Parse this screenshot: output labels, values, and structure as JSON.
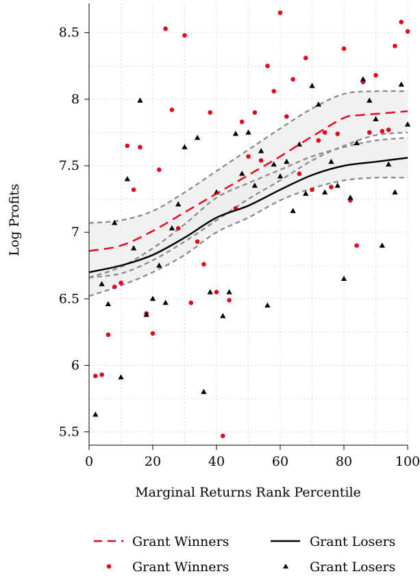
{
  "chart_data": {
    "type": "scatter",
    "xlabel": "Marginal Returns Rank Percentile",
    "ylabel": "Log Profits",
    "xlim": [
      0,
      100
    ],
    "ylim": [
      5.4,
      8.72
    ],
    "x_ticks": [
      0,
      20,
      40,
      60,
      80,
      100
    ],
    "x_tick_labels": [
      "0",
      "20",
      "40",
      "60",
      "80",
      "100"
    ],
    "y_ticks": [
      5.5,
      6,
      6.5,
      7,
      7.5,
      8,
      8.5
    ],
    "y_tick_labels": [
      "5.5",
      "6",
      "6.5",
      "7",
      "7.5",
      "8",
      "8.5"
    ],
    "grid": true,
    "legend_position": "bottom",
    "legend": [
      {
        "label": "Grant Winners",
        "marker": "dashed-line",
        "color": "#e8001c"
      },
      {
        "label": "Grant Losers",
        "marker": "solid-line",
        "color": "#000000"
      },
      {
        "label": "Grant Winners",
        "marker": "dot",
        "color": "#e8001c"
      },
      {
        "label": "Grant Losers",
        "marker": "triangle",
        "color": "#000000"
      }
    ],
    "colors": {
      "winners": "#e8001c",
      "losers": "#000000",
      "ci_band": "#ececec",
      "ci_line": "#8c8c8c"
    },
    "series": [
      {
        "name": "Grant Winners",
        "kind": "points",
        "x": [
          2,
          4,
          6,
          8,
          10,
          12,
          14,
          16,
          18,
          20,
          22,
          24,
          26,
          28,
          30,
          32,
          34,
          36,
          38,
          40,
          42,
          44,
          46,
          48,
          50,
          52,
          54,
          56,
          58,
          60,
          62,
          64,
          66,
          68,
          70,
          72,
          74,
          76,
          78,
          80,
          82,
          84,
          86,
          88,
          90,
          92,
          94,
          96,
          98,
          100
        ],
        "y": [
          5.92,
          5.93,
          6.23,
          6.59,
          6.62,
          7.65,
          7.32,
          7.64,
          6.39,
          6.24,
          7.47,
          8.53,
          7.92,
          7.03,
          8.48,
          6.47,
          6.93,
          6.76,
          7.9,
          6.55,
          5.47,
          6.49,
          7.18,
          7.83,
          7.57,
          7.9,
          7.54,
          8.25,
          8.06,
          8.65,
          7.87,
          8.15,
          7.44,
          8.31,
          7.32,
          7.69,
          7.75,
          7.34,
          7.74,
          8.38,
          7.24,
          6.9,
          8.13,
          7.75,
          8.18,
          7.76,
          7.77,
          8.4,
          8.58,
          8.51
        ]
      },
      {
        "name": "Grant Losers",
        "kind": "points",
        "x": [
          2,
          4,
          6,
          8,
          10,
          12,
          14,
          16,
          18,
          20,
          22,
          24,
          26,
          28,
          30,
          34,
          36,
          38,
          40,
          42,
          44,
          46,
          48,
          50,
          52,
          54,
          56,
          58,
          60,
          62,
          64,
          66,
          68,
          70,
          72,
          74,
          76,
          78,
          80,
          82,
          84,
          86,
          88,
          90,
          92,
          94,
          96,
          98,
          100
        ],
        "y": [
          5.63,
          6.61,
          6.46,
          7.07,
          5.91,
          7.4,
          6.88,
          7.99,
          6.38,
          6.5,
          6.75,
          6.47,
          7.03,
          7.21,
          7.64,
          7.71,
          5.8,
          6.55,
          7.3,
          6.37,
          6.55,
          7.74,
          7.44,
          7.75,
          7.35,
          7.61,
          6.45,
          7.51,
          7.42,
          7.53,
          7.16,
          7.66,
          7.29,
          8.1,
          7.96,
          7.3,
          7.53,
          7.35,
          6.65,
          7.26,
          7.67,
          8.15,
          7.99,
          7.85,
          6.9,
          7.51,
          7.3,
          8.11,
          7.81
        ]
      },
      {
        "name": "Grant Winners",
        "kind": "fit",
        "x": [
          0,
          10,
          20,
          30,
          40,
          50,
          60,
          70,
          80,
          85,
          90,
          100
        ],
        "y": [
          6.86,
          6.9,
          7.01,
          7.15,
          7.29,
          7.43,
          7.57,
          7.72,
          7.86,
          7.88,
          7.89,
          7.91
        ]
      },
      {
        "name": "Grant Losers",
        "kind": "fit",
        "x": [
          0,
          10,
          20,
          30,
          40,
          50,
          60,
          70,
          80,
          90,
          100
        ],
        "y": [
          6.7,
          6.75,
          6.83,
          6.96,
          7.11,
          7.2,
          7.32,
          7.43,
          7.5,
          7.53,
          7.56
        ]
      },
      {
        "name": "Grant Losers 95% CI",
        "kind": "band",
        "x": [
          0,
          10,
          20,
          30,
          40,
          50,
          60,
          70,
          80,
          90,
          100
        ],
        "lower": [
          6.52,
          6.6,
          6.7,
          6.83,
          7,
          7.11,
          7.24,
          7.33,
          7.39,
          7.41,
          7.41
        ],
        "upper": [
          6.66,
          6.74,
          6.88,
          7.06,
          7.26,
          7.37,
          7.47,
          7.57,
          7.64,
          7.69,
          7.71
        ]
      },
      {
        "name": "Grant Winners 95% CI",
        "kind": "band",
        "x": [
          0,
          10,
          20,
          30,
          40,
          50,
          60,
          70,
          80,
          90,
          100
        ],
        "lower": [
          6.66,
          6.69,
          6.79,
          6.93,
          7.09,
          7.25,
          7.39,
          7.54,
          7.65,
          7.73,
          7.75
        ],
        "upper": [
          7.07,
          7.09,
          7.16,
          7.3,
          7.46,
          7.62,
          7.78,
          7.93,
          8.04,
          8.06,
          8.06
        ]
      }
    ]
  }
}
